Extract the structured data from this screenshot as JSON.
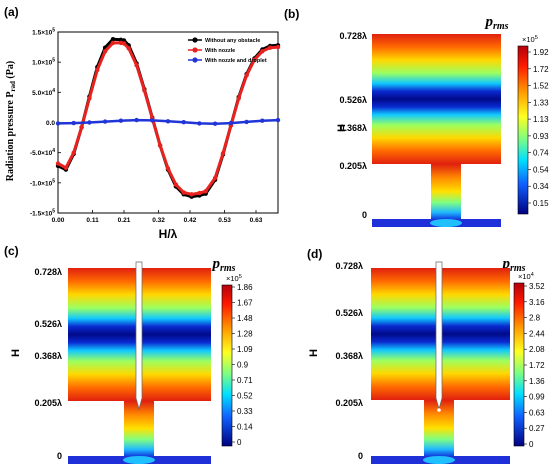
{
  "panels": {
    "a": {
      "label": "(a)",
      "chart_data": {
        "type": "line",
        "title": "",
        "xlabel": "H/λ",
        "ylabel_main": "Radiation pressure P",
        "ylabel_sub": "rad",
        "ylabel_unit": " (Pa)",
        "xlim": [
          0,
          0.7
        ],
        "ylim": [
          -150000,
          150000
        ],
        "x_ticks": [
          0.0,
          0.11,
          0.21,
          0.32,
          0.42,
          0.53,
          0.63
        ],
        "x_tick_labels": [
          "0.00",
          "0.11",
          "0.21",
          "0.32",
          "0.42",
          "0.53",
          "0.63"
        ],
        "y_ticks": [
          -150000,
          -100000,
          -50000,
          0,
          50000,
          100000,
          150000
        ],
        "y_tick_labels": [
          {
            "mant": "-1.5×10",
            "exp": "5"
          },
          {
            "mant": "-1.0×10",
            "exp": "5"
          },
          {
            "mant": "-5.0×10",
            "exp": "4"
          },
          {
            "mant": "0.0",
            "exp": ""
          },
          {
            "mant": "5.0×10",
            "exp": "4"
          },
          {
            "mant": "1.0×10",
            "exp": "5"
          },
          {
            "mant": "1.5×10",
            "exp": "5"
          }
        ],
        "legend_position": "top-right",
        "series": [
          {
            "name": "Without any obstacle",
            "color": "#000000",
            "x": [
              0.0,
              0.025,
              0.05,
              0.075,
              0.1,
              0.125,
              0.15,
              0.175,
              0.2,
              0.21,
              0.225,
              0.25,
              0.275,
              0.3,
              0.325,
              0.35,
              0.375,
              0.4,
              0.425,
              0.45,
              0.47,
              0.5,
              0.525,
              0.55,
              0.575,
              0.6,
              0.625,
              0.65,
              0.675,
              0.7
            ],
            "y": [
              -72000,
              -78000,
              -52000,
              -8000,
              43000,
              92000,
              124000,
              138000,
              137000,
              136000,
              128000,
              98000,
              55000,
              8000,
              -38000,
              -78000,
              -106000,
              -119000,
              -123000,
              -121000,
              -118000,
              -95000,
              -53000,
              -5000,
              42000,
              80000,
              106000,
              121000,
              127000,
              128000
            ]
          },
          {
            "name": "With nozzle",
            "color": "#e8231f",
            "x": [
              0.0,
              0.025,
              0.05,
              0.075,
              0.1,
              0.125,
              0.15,
              0.175,
              0.2,
              0.21,
              0.225,
              0.25,
              0.275,
              0.3,
              0.325,
              0.35,
              0.375,
              0.4,
              0.425,
              0.45,
              0.47,
              0.5,
              0.525,
              0.55,
              0.575,
              0.6,
              0.625,
              0.65,
              0.675,
              0.7
            ],
            "y": [
              -68000,
              -75000,
              -50000,
              -8000,
              40000,
              87000,
              118000,
              132000,
              132000,
              131000,
              123000,
              95000,
              53000,
              7000,
              -38000,
              -76000,
              -103000,
              -116000,
              -119000,
              -117000,
              -114000,
              -92000,
              -51000,
              -5000,
              40000,
              78000,
              104000,
              118000,
              124000,
              125000
            ]
          },
          {
            "name": "With nozzle and droplet",
            "color": "#1f35d8",
            "x": [
              0.0,
              0.05,
              0.1,
              0.15,
              0.2,
              0.25,
              0.3,
              0.35,
              0.4,
              0.45,
              0.5,
              0.55,
              0.6,
              0.65,
              0.7
            ],
            "y": [
              -1500,
              -1000,
              0,
              1500,
              3000,
              4000,
              3500,
              2000,
              500,
              -1500,
              -2000,
              -1000,
              1000,
              3000,
              4000
            ]
          }
        ]
      }
    },
    "b": {
      "label": "(b)",
      "title_main": "p",
      "title_sub": "rms",
      "ylabel": "H",
      "y_ticks": [
        "0.728λ",
        "0.526λ",
        "0.368λ",
        "0.205λ",
        "0"
      ],
      "colorbar_exponent": "×10",
      "colorbar_exponent_power": "5",
      "colorbar_ticks": [
        "1.92",
        "1.72",
        "1.52",
        "1.33",
        "1.13",
        "0.93",
        "0.74",
        "0.54",
        "0.34",
        "0.15"
      ],
      "has_nozzle": false
    },
    "c": {
      "label": "(c)",
      "title_main": "p",
      "title_sub": "rms",
      "ylabel": "H",
      "y_ticks": [
        "0.728λ",
        "0.526λ",
        "0.368λ",
        "0.205λ",
        "0"
      ],
      "colorbar_exponent": "×10",
      "colorbar_exponent_power": "5",
      "colorbar_ticks": [
        "1.86",
        "1.67",
        "1.48",
        "1.28",
        "1.09",
        "0.9",
        "0.71",
        "0.52",
        "0.33",
        "0.14",
        "0"
      ],
      "has_nozzle": true
    },
    "d": {
      "label": "(d)",
      "title_main": "p",
      "title_sub": "rms",
      "ylabel": "H",
      "y_ticks": [
        "0.728λ",
        "0.526λ",
        "0.368λ",
        "0.205λ",
        "0"
      ],
      "colorbar_exponent": "×10",
      "colorbar_exponent_power": "4",
      "colorbar_ticks": [
        "3.52",
        "3.16",
        "2.8",
        "2.44",
        "2.08",
        "1.72",
        "1.36",
        "0.99",
        "0.63",
        "0.27",
        "0"
      ],
      "has_nozzle": true
    }
  }
}
